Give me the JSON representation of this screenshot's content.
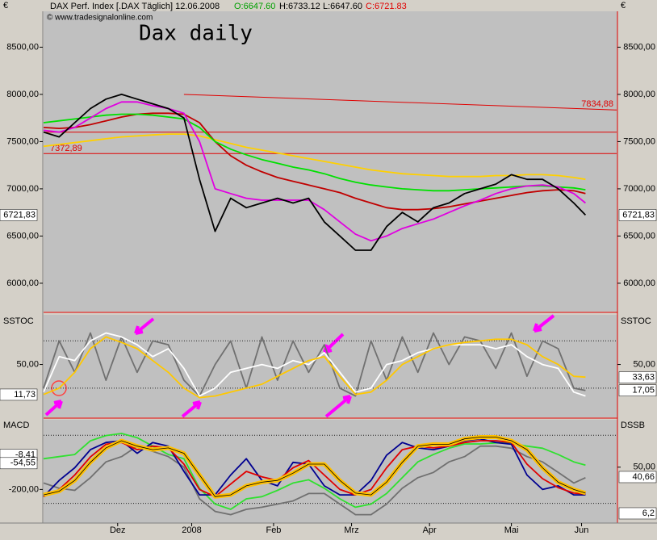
{
  "header": {
    "symbol_text": "DAX Perf. Index [.DAX  Täglich] 12.06.2008",
    "open": "O:6647.60",
    "high": "H:6733.12",
    "low": "L:6647.60",
    "close": "C:6721.83",
    "website": "© www.tradesignalonline.com"
  },
  "chart_data": [
    {
      "type": "line",
      "title": "Dax daily",
      "currency_label": "€",
      "x": [
        0,
        4,
        8,
        12,
        16,
        20,
        24,
        28,
        32,
        36,
        40,
        44,
        48,
        52,
        56,
        60,
        64,
        68,
        72,
        76,
        80,
        84,
        88,
        92,
        96,
        100,
        104,
        108,
        112,
        116,
        120,
        124,
        128,
        132,
        136,
        139
      ],
      "xlim": [
        0,
        147
      ],
      "xticks": [
        {
          "value": 19,
          "label": "Dez"
        },
        {
          "value": 38,
          "label": "2008"
        },
        {
          "value": 59,
          "label": "Feb"
        },
        {
          "value": 79,
          "label": "Mrz"
        },
        {
          "value": 99,
          "label": "Apr"
        },
        {
          "value": 120,
          "label": "Mai"
        },
        {
          "value": 138,
          "label": "Jun"
        }
      ],
      "ylim": [
        5700,
        8880
      ],
      "yticks": [
        {
          "value": 6000,
          "label": "6000,00"
        },
        {
          "value": 6500,
          "label": "6500,00"
        },
        {
          "value": 7000,
          "label": "7000,00"
        },
        {
          "value": 7500,
          "label": "7500,00"
        },
        {
          "value": 8000,
          "label": "8000,00"
        },
        {
          "value": 8500,
          "label": "8500,00"
        }
      ],
      "series": [
        {
          "color": "#ffd000",
          "values": [
            7450,
            7470,
            7490,
            7510,
            7530,
            7550,
            7560,
            7570,
            7580,
            7580,
            7560,
            7520,
            7480,
            7440,
            7410,
            7380,
            7350,
            7320,
            7290,
            7260,
            7230,
            7200,
            7180,
            7160,
            7150,
            7140,
            7130,
            7130,
            7130,
            7140,
            7140,
            7150,
            7150,
            7140,
            7120,
            7100
          ]
        },
        {
          "color": "#c00000",
          "values": [
            7650,
            7640,
            7650,
            7680,
            7720,
            7760,
            7790,
            7800,
            7800,
            7790,
            7700,
            7500,
            7350,
            7250,
            7180,
            7120,
            7080,
            7040,
            7000,
            6960,
            6900,
            6850,
            6800,
            6780,
            6780,
            6790,
            6810,
            6840,
            6870,
            6900,
            6930,
            6960,
            6980,
            6990,
            6980,
            6950
          ]
        },
        {
          "color": "#00e000",
          "values": [
            7700,
            7720,
            7740,
            7760,
            7780,
            7790,
            7790,
            7780,
            7760,
            7740,
            7650,
            7500,
            7420,
            7360,
            7310,
            7270,
            7230,
            7200,
            7160,
            7110,
            7070,
            7040,
            7020,
            7000,
            6990,
            6980,
            6980,
            6990,
            7000,
            7010,
            7020,
            7030,
            7030,
            7020,
            7010,
            6990
          ]
        },
        {
          "color": "#e000e0",
          "values": [
            7620,
            7600,
            7650,
            7750,
            7850,
            7920,
            7920,
            7880,
            7850,
            7800,
            7500,
            7000,
            6950,
            6900,
            6880,
            6880,
            6880,
            6880,
            6780,
            6650,
            6520,
            6450,
            6500,
            6580,
            6630,
            6680,
            6750,
            6820,
            6880,
            6950,
            7000,
            7030,
            7040,
            7020,
            6950,
            6850
          ]
        },
        {
          "color": "#000000",
          "values": [
            7600,
            7550,
            7700,
            7850,
            7950,
            8000,
            7950,
            7900,
            7850,
            7750,
            7100,
            6550,
            6900,
            6800,
            6850,
            6900,
            6850,
            6900,
            6650,
            6500,
            6350,
            6350,
            6600,
            6750,
            6650,
            6800,
            6850,
            6950,
            7000,
            7050,
            7150,
            7100,
            7100,
            7000,
            6850,
            6722
          ]
        }
      ],
      "trendline": {
        "x": [
          36,
          147
        ],
        "y": [
          8000,
          7834.88
        ],
        "label": "7834,88",
        "color": "#e00000"
      },
      "levels": [
        {
          "value": 7600,
          "color": "#e00000"
        },
        {
          "value": 7372.89,
          "label": "7372,89",
          "color": "#e00000"
        }
      ],
      "last_value": {
        "value": 6721.83,
        "label": "6721,83"
      }
    },
    {
      "type": "line",
      "title": "SSTOC",
      "x": [
        0,
        4,
        8,
        12,
        16,
        20,
        24,
        28,
        32,
        36,
        40,
        44,
        48,
        52,
        56,
        60,
        64,
        68,
        72,
        76,
        80,
        84,
        88,
        92,
        96,
        100,
        104,
        108,
        112,
        116,
        120,
        124,
        128,
        132,
        136,
        139
      ],
      "xlim": [
        0,
        147
      ],
      "ylim": [
        -17,
        112
      ],
      "yticks": [
        {
          "value": 50,
          "label": "50,00"
        }
      ],
      "levels": [
        80,
        20
      ],
      "series": [
        {
          "color": "#707070",
          "values": [
            20,
            80,
            40,
            90,
            30,
            85,
            40,
            80,
            75,
            30,
            10,
            50,
            80,
            20,
            85,
            30,
            80,
            40,
            75,
            20,
            10,
            80,
            30,
            85,
            40,
            90,
            50,
            85,
            80,
            45,
            90,
            35,
            80,
            70,
            20,
            17
          ]
        },
        {
          "color": "#ffffff",
          "values": [
            15,
            60,
            55,
            80,
            90,
            85,
            75,
            60,
            70,
            45,
            10,
            20,
            40,
            45,
            50,
            45,
            55,
            50,
            65,
            40,
            15,
            20,
            50,
            55,
            65,
            70,
            75,
            75,
            75,
            70,
            75,
            60,
            50,
            45,
            15,
            10
          ]
        },
        {
          "color": "#ffc800",
          "values": [
            12,
            20,
            40,
            70,
            85,
            78,
            70,
            55,
            40,
            20,
            8,
            10,
            15,
            20,
            25,
            35,
            45,
            55,
            60,
            35,
            12,
            15,
            30,
            50,
            60,
            70,
            75,
            78,
            80,
            82,
            82,
            75,
            60,
            50,
            35,
            34
          ]
        }
      ],
      "left_markers": [
        {
          "value": 11.73,
          "label": "11,73"
        }
      ],
      "right_markers": [
        {
          "value": 33.63,
          "label": "33,63"
        },
        {
          "value": 17.05,
          "label": "17,05"
        }
      ]
    },
    {
      "type": "line",
      "title": "MACD",
      "right_title": "DSSB",
      "x": [
        0,
        4,
        8,
        12,
        16,
        20,
        24,
        28,
        32,
        36,
        40,
        44,
        48,
        52,
        56,
        60,
        64,
        68,
        72,
        76,
        80,
        84,
        88,
        92,
        96,
        100,
        104,
        108,
        112,
        116,
        120,
        124,
        128,
        132,
        136,
        139
      ],
      "xlim": [
        0,
        147
      ],
      "ylim": [
        -386,
        186
      ],
      "y2lim": [
        -3,
        95
      ],
      "yticks": [
        {
          "value": -200,
          "label": "-200,00"
        }
      ],
      "y2ticks": [
        {
          "value": 50,
          "label": "50,00"
        }
      ],
      "levels": [
        100,
        -277
      ],
      "series": [
        {
          "color": "#707070",
          "axis": "y2",
          "values": [
            35,
            30,
            28,
            40,
            55,
            60,
            70,
            65,
            60,
            50,
            20,
            8,
            5,
            10,
            12,
            15,
            18,
            25,
            25,
            15,
            5,
            5,
            15,
            30,
            40,
            45,
            55,
            60,
            70,
            70,
            68,
            60,
            55,
            45,
            35,
            40
          ]
        },
        {
          "color": "#30e030",
          "axis": "y2",
          "values": [
            58,
            60,
            62,
            75,
            80,
            82,
            78,
            70,
            62,
            58,
            30,
            15,
            10,
            20,
            22,
            28,
            35,
            38,
            30,
            20,
            12,
            15,
            25,
            40,
            55,
            62,
            68,
            72,
            72,
            73,
            73,
            70,
            68,
            62,
            55,
            52
          ]
        },
        {
          "color": "#000090",
          "values": [
            -240,
            -150,
            -80,
            20,
            60,
            70,
            0,
            60,
            40,
            -100,
            -230,
            -230,
            -120,
            -30,
            -150,
            -180,
            -50,
            -60,
            -180,
            -230,
            -230,
            -150,
            -10,
            60,
            30,
            20,
            40,
            70,
            80,
            60,
            50,
            -120,
            -200,
            -180,
            -230,
            -230
          ]
        },
        {
          "color": "#e00000",
          "values": [
            -240,
            -200,
            -120,
            -20,
            50,
            60,
            20,
            40,
            30,
            -60,
            -200,
            -240,
            -170,
            -100,
            -130,
            -150,
            -80,
            -40,
            -120,
            -200,
            -230,
            -200,
            -80,
            20,
            40,
            30,
            40,
            60,
            70,
            70,
            60,
            -60,
            -140,
            -190,
            -220,
            -225
          ]
        },
        {
          "color": "#ffc000",
          "values": [
            -230,
            -210,
            -150,
            -50,
            30,
            70,
            40,
            20,
            30,
            0,
            -120,
            -240,
            -230,
            -180,
            -160,
            -150,
            -110,
            -60,
            -60,
            -150,
            -220,
            -230,
            -160,
            -50,
            40,
            50,
            50,
            80,
            90,
            90,
            70,
            20,
            -80,
            -160,
            -200,
            -220
          ]
        }
      ],
      "left_markers": [
        {
          "value": -8.41,
          "label": "-8.41"
        },
        {
          "value": -54.55,
          "label": "-54,55"
        }
      ],
      "right_markers": [
        {
          "value": 40.66,
          "label": "40,66"
        },
        {
          "value": 6.2,
          "label": "6,2"
        }
      ]
    }
  ]
}
